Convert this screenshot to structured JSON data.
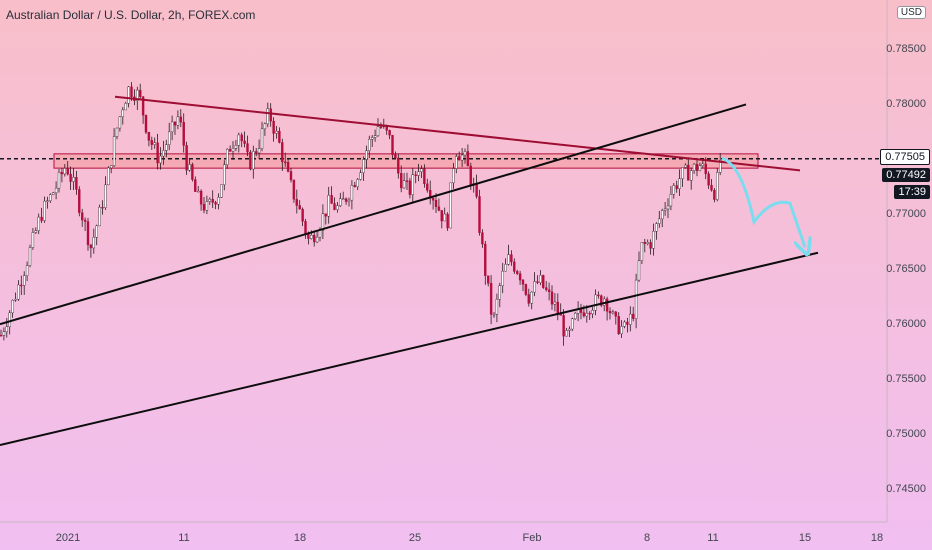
{
  "title": "Australian Dollar / U.S. Dollar, 2h, FOREX.com",
  "currency": "USD",
  "colors": {
    "bg_top": "#f8bfc9",
    "bg_bottom": "#f1bff1",
    "up": "#ffffff",
    "down": "#b50d3c",
    "wick": "#2a1a22",
    "zone_fill": "#f4a2a8",
    "zone_border": "#b50d3c",
    "trend_red": "#9e0d33",
    "trend_black": "#0d0d0d",
    "arrow": "#79ddef"
  },
  "chart_data": {
    "type": "candlestick",
    "y_axis": {
      "min": 0.742,
      "max": 0.7895,
      "ticks": [
        "0.74500",
        "0.75000",
        "0.75500",
        "0.76000",
        "0.76500",
        "0.77000",
        "0.77500",
        "0.78000",
        "0.78500",
        "0.79000"
      ],
      "tick_values": [
        0.745,
        0.75,
        0.755,
        0.76,
        0.765,
        0.77,
        0.775,
        0.78,
        0.785,
        0.79
      ]
    },
    "x_axis": {
      "labels": [
        "2021",
        "11",
        "18",
        "25",
        "Feb",
        "8",
        "11",
        "15",
        "18"
      ]
    },
    "price_labels": {
      "last": "0.77505",
      "close": "0.77492",
      "timer": "17:39",
      "last_value": 0.77505,
      "close_value": 0.77492
    },
    "anchors": [
      [
        0,
        0.759
      ],
      [
        10,
        0.7615
      ],
      [
        25,
        0.7655
      ],
      [
        40,
        0.77
      ],
      [
        55,
        0.7725
      ],
      [
        65,
        0.7745
      ],
      [
        75,
        0.772
      ],
      [
        90,
        0.767
      ],
      [
        100,
        0.7705
      ],
      [
        108,
        0.774
      ],
      [
        115,
        0.7775
      ],
      [
        122,
        0.78
      ],
      [
        128,
        0.7815
      ],
      [
        138,
        0.7808
      ],
      [
        148,
        0.777
      ],
      [
        158,
        0.775
      ],
      [
        168,
        0.777
      ],
      [
        178,
        0.779
      ],
      [
        186,
        0.7745
      ],
      [
        196,
        0.7715
      ],
      [
        206,
        0.7705
      ],
      [
        218,
        0.772
      ],
      [
        228,
        0.776
      ],
      [
        238,
        0.7775
      ],
      [
        248,
        0.7745
      ],
      [
        258,
        0.7765
      ],
      [
        268,
        0.7792
      ],
      [
        278,
        0.7765
      ],
      [
        288,
        0.773
      ],
      [
        298,
        0.7705
      ],
      [
        308,
        0.7675
      ],
      [
        318,
        0.769
      ],
      [
        328,
        0.771
      ],
      [
        338,
        0.7705
      ],
      [
        348,
        0.772
      ],
      [
        358,
        0.774
      ],
      [
        368,
        0.7765
      ],
      [
        378,
        0.7782
      ],
      [
        388,
        0.777
      ],
      [
        398,
        0.7735
      ],
      [
        408,
        0.772
      ],
      [
        418,
        0.7745
      ],
      [
        428,
        0.7725
      ],
      [
        438,
        0.7705
      ],
      [
        446,
        0.769
      ],
      [
        454,
        0.776
      ],
      [
        464,
        0.775
      ],
      [
        474,
        0.772
      ],
      [
        484,
        0.765
      ],
      [
        492,
        0.76
      ],
      [
        500,
        0.764
      ],
      [
        508,
        0.766
      ],
      [
        518,
        0.7648
      ],
      [
        528,
        0.7625
      ],
      [
        538,
        0.764
      ],
      [
        548,
        0.7625
      ],
      [
        558,
        0.761
      ],
      [
        566,
        0.7585
      ],
      [
        574,
        0.7605
      ],
      [
        584,
        0.7615
      ],
      [
        594,
        0.762
      ],
      [
        604,
        0.7625
      ],
      [
        614,
        0.76
      ],
      [
        624,
        0.7595
      ],
      [
        632,
        0.761
      ],
      [
        640,
        0.767
      ],
      [
        650,
        0.7675
      ],
      [
        660,
        0.77
      ],
      [
        670,
        0.772
      ],
      [
        680,
        0.7735
      ],
      [
        690,
        0.774
      ],
      [
        700,
        0.7745
      ],
      [
        708,
        0.773
      ],
      [
        714,
        0.772
      ],
      [
        720,
        0.7748
      ],
      [
        722,
        0.77505
      ]
    ],
    "resistance_zone": {
      "x0": 54,
      "x1": 758,
      "top": 0.7755,
      "bottom": 0.7742
    },
    "horizontal_line": 0.77505,
    "trendlines": [
      {
        "color": "red",
        "x0": 115,
        "y0": 0.7807,
        "x1": 800,
        "y1": 0.774
      },
      {
        "color": "black",
        "x0": 0,
        "y0": 0.76,
        "x1": 746,
        "y1": 0.78
      },
      {
        "color": "black",
        "x0": 0,
        "y0": 0.749,
        "x1": 818,
        "y1": 0.7665
      }
    ],
    "projection_path": [
      [
        722,
        0.7751
      ],
      [
        742,
        0.7745
      ],
      [
        754,
        0.7693
      ],
      [
        772,
        0.7715
      ],
      [
        790,
        0.771
      ],
      [
        805,
        0.767
      ]
    ],
    "grid": false,
    "legend": "none"
  }
}
